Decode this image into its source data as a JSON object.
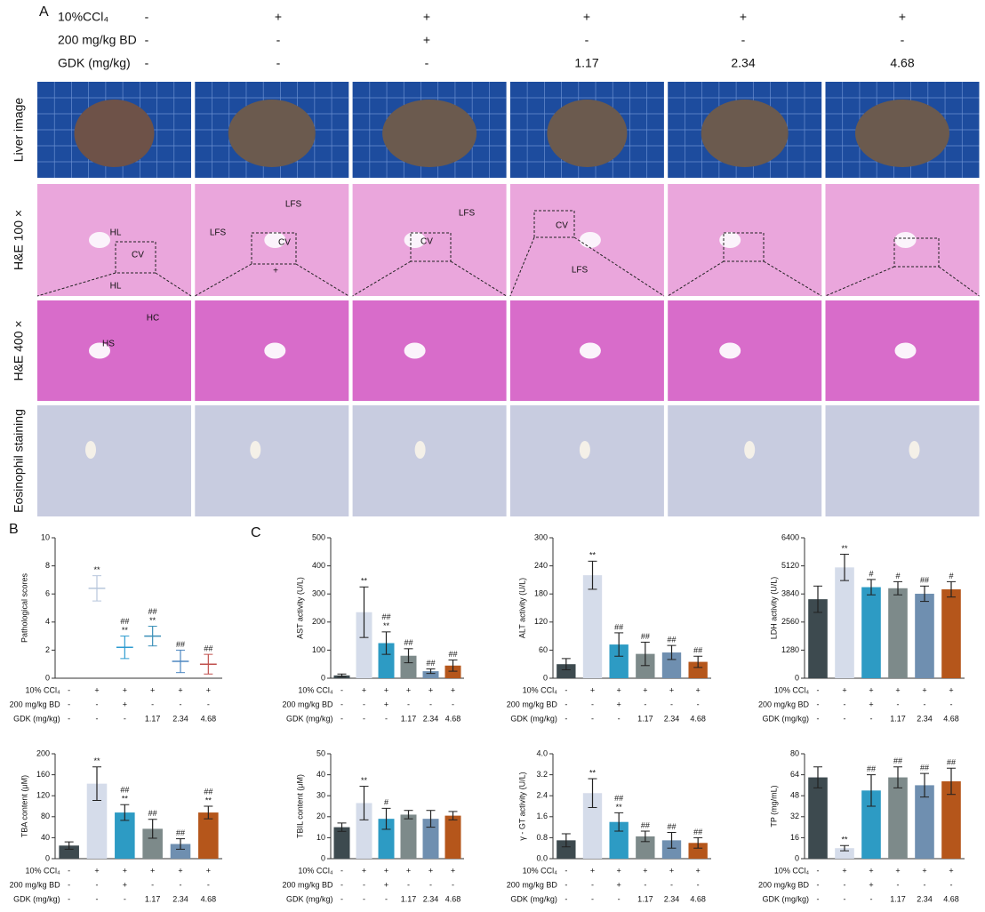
{
  "panel_labels": [
    "A",
    "B",
    "C"
  ],
  "panel_a": {
    "treatments": [
      {
        "label": "10%CCl₄",
        "values": [
          "-",
          "+",
          "+",
          "+",
          "+",
          "+"
        ]
      },
      {
        "label": "200 mg/kg BD",
        "values": [
          "-",
          "-",
          "+",
          "-",
          "-",
          "-"
        ]
      },
      {
        "label": "GDK (mg/kg)",
        "values": [
          "-",
          "-",
          "-",
          "1.17",
          "2.34",
          "4.68"
        ]
      }
    ],
    "row_labels": [
      "Liver image",
      "H&E 100 ×",
      "H&E 400 ×",
      "Eosinophil staining"
    ],
    "he100_annotations": [
      [
        "HL",
        "CV",
        "HL"
      ],
      [
        "LFS",
        "LFS",
        "CV",
        "+"
      ],
      [
        "LFS",
        "CV"
      ],
      [
        "CV",
        "LFS"
      ],
      [],
      []
    ],
    "he400_annotations": [
      [
        "HC",
        "HS"
      ],
      [],
      [],
      [],
      [],
      []
    ]
  },
  "treatments": [
    {
      "label": "10% CCl₄",
      "values": [
        "-",
        "+",
        "+",
        "+",
        "+",
        "+"
      ]
    },
    {
      "label": "200 mg/kg BD",
      "values": [
        "-",
        "-",
        "+",
        "-",
        "-",
        "-"
      ]
    },
    {
      "label": "GDK (mg/kg)",
      "values": [
        "-",
        "-",
        "-",
        "1.17",
        "2.34",
        "4.68"
      ]
    }
  ],
  "chart_data": [
    {
      "type": "dot",
      "ylabel": "Pathological scores",
      "ylim": [
        0,
        10
      ],
      "yticks": [
        0,
        2,
        4,
        6,
        8,
        10
      ],
      "colors": [
        "#777777",
        "#b7c6dc",
        "#2d9bd0",
        "#3b8fb8",
        "#4d87c0",
        "#c0504d"
      ],
      "values": [
        0,
        6.4,
        2.2,
        3.0,
        1.2,
        1.0
      ],
      "errors": [
        0,
        0.9,
        0.8,
        0.7,
        0.8,
        0.7
      ],
      "annotations": [
        [],
        [
          "**"
        ],
        [
          "##",
          "**"
        ],
        [
          "##",
          "**"
        ],
        [
          "##"
        ],
        [
          "##"
        ]
      ]
    },
    {
      "type": "bar",
      "ylabel": "AST  activity (U/L)",
      "ylim": [
        0,
        500
      ],
      "yticks": [
        0,
        100,
        200,
        300,
        400,
        500
      ],
      "colors": [
        "#3d4a4f",
        "#d5dcea",
        "#2d9bc4",
        "#7d8a8a",
        "#6f8fb0",
        "#b5561b"
      ],
      "values": [
        10,
        235,
        125,
        80,
        25,
        45
      ],
      "errors": [
        5,
        90,
        40,
        25,
        8,
        20
      ],
      "annotations": [
        [],
        [
          "**"
        ],
        [
          "##",
          "**"
        ],
        [
          "##"
        ],
        [
          "##"
        ],
        [
          "##"
        ]
      ]
    },
    {
      "type": "bar",
      "ylabel": "ALT  activity (U/L)",
      "ylim": [
        0,
        300
      ],
      "yticks": [
        0,
        60,
        120,
        180,
        240,
        300
      ],
      "colors": [
        "#3d4a4f",
        "#d5dcea",
        "#2d9bc4",
        "#7d8a8a",
        "#6f8fb0",
        "#b5561b"
      ],
      "values": [
        30,
        220,
        72,
        52,
        55,
        35
      ],
      "errors": [
        12,
        30,
        25,
        25,
        15,
        12
      ],
      "annotations": [
        [],
        [
          "**"
        ],
        [
          "##"
        ],
        [
          "##"
        ],
        [
          "##"
        ],
        [
          "##"
        ]
      ]
    },
    {
      "type": "bar",
      "ylabel": "LDH  activity (U/L)",
      "ylim": [
        0,
        6400
      ],
      "yticks": [
        0,
        1280,
        2560,
        3840,
        5120,
        6400
      ],
      "colors": [
        "#3d4a4f",
        "#d5dcea",
        "#2d9bc4",
        "#7d8a8a",
        "#6f8fb0",
        "#b5561b"
      ],
      "values": [
        3600,
        5050,
        4150,
        4100,
        3850,
        4050
      ],
      "errors": [
        600,
        600,
        350,
        300,
        350,
        350
      ],
      "annotations": [
        [],
        [
          "**"
        ],
        [
          "#"
        ],
        [
          "#"
        ],
        [
          "##"
        ],
        [
          "#"
        ]
      ]
    },
    {
      "type": "bar",
      "ylabel": "TBA content (μM)",
      "ylim": [
        0,
        200
      ],
      "yticks": [
        0,
        40,
        80,
        120,
        160,
        200
      ],
      "colors": [
        "#3d4a4f",
        "#d5dcea",
        "#2d9bc4",
        "#7d8a8a",
        "#6f8fb0",
        "#b5561b"
      ],
      "values": [
        25,
        143,
        88,
        57,
        28,
        88
      ],
      "errors": [
        7,
        32,
        15,
        18,
        10,
        12
      ],
      "annotations": [
        [],
        [
          "**"
        ],
        [
          "##",
          "**"
        ],
        [
          "##"
        ],
        [
          "##"
        ],
        [
          "##",
          "**"
        ]
      ]
    },
    {
      "type": "bar",
      "ylabel": "TBIL content (μM)",
      "ylim": [
        0,
        50
      ],
      "yticks": [
        0,
        10,
        20,
        30,
        40,
        50
      ],
      "colors": [
        "#3d4a4f",
        "#d5dcea",
        "#2d9bc4",
        "#7d8a8a",
        "#6f8fb0",
        "#b5561b"
      ],
      "values": [
        15,
        26.5,
        19,
        21,
        19,
        20.5
      ],
      "errors": [
        2,
        8,
        5,
        2,
        4,
        2
      ],
      "annotations": [
        [],
        [
          "**"
        ],
        [
          "#"
        ],
        [],
        [],
        []
      ]
    },
    {
      "type": "bar",
      "ylabel": "γ - GT activity (U/L)",
      "ylim": [
        0,
        4.0
      ],
      "yticks": [
        {
          "value": 0,
          "label": "0.0"
        },
        0.8,
        1.6,
        2.4,
        3.2,
        {
          "value": 4,
          "label": "4.0"
        }
      ],
      "colors": [
        "#3d4a4f",
        "#d5dcea",
        "#2d9bc4",
        "#7d8a8a",
        "#6f8fb0",
        "#b5561b"
      ],
      "values": [
        0.7,
        2.5,
        1.4,
        0.85,
        0.7,
        0.6
      ],
      "errors": [
        0.25,
        0.55,
        0.35,
        0.2,
        0.3,
        0.2
      ],
      "annotations": [
        [],
        [
          "**"
        ],
        [
          "##",
          "**"
        ],
        [
          "##"
        ],
        [
          "##"
        ],
        [
          "##"
        ]
      ]
    },
    {
      "type": "bar",
      "ylabel": "TP (mg/mL)",
      "ylim": [
        0,
        80
      ],
      "yticks": [
        0,
        16,
        32,
        48,
        64,
        80
      ],
      "colors": [
        "#3d4a4f",
        "#d5dcea",
        "#2d9bc4",
        "#7d8a8a",
        "#6f8fb0",
        "#b5561b"
      ],
      "values": [
        62,
        8,
        52,
        62,
        56,
        59
      ],
      "errors": [
        8,
        2,
        12,
        8,
        9,
        10
      ],
      "annotations": [
        [],
        [
          "**"
        ],
        [
          "##"
        ],
        [
          "##"
        ],
        [
          "##"
        ],
        [
          "##"
        ]
      ]
    }
  ]
}
